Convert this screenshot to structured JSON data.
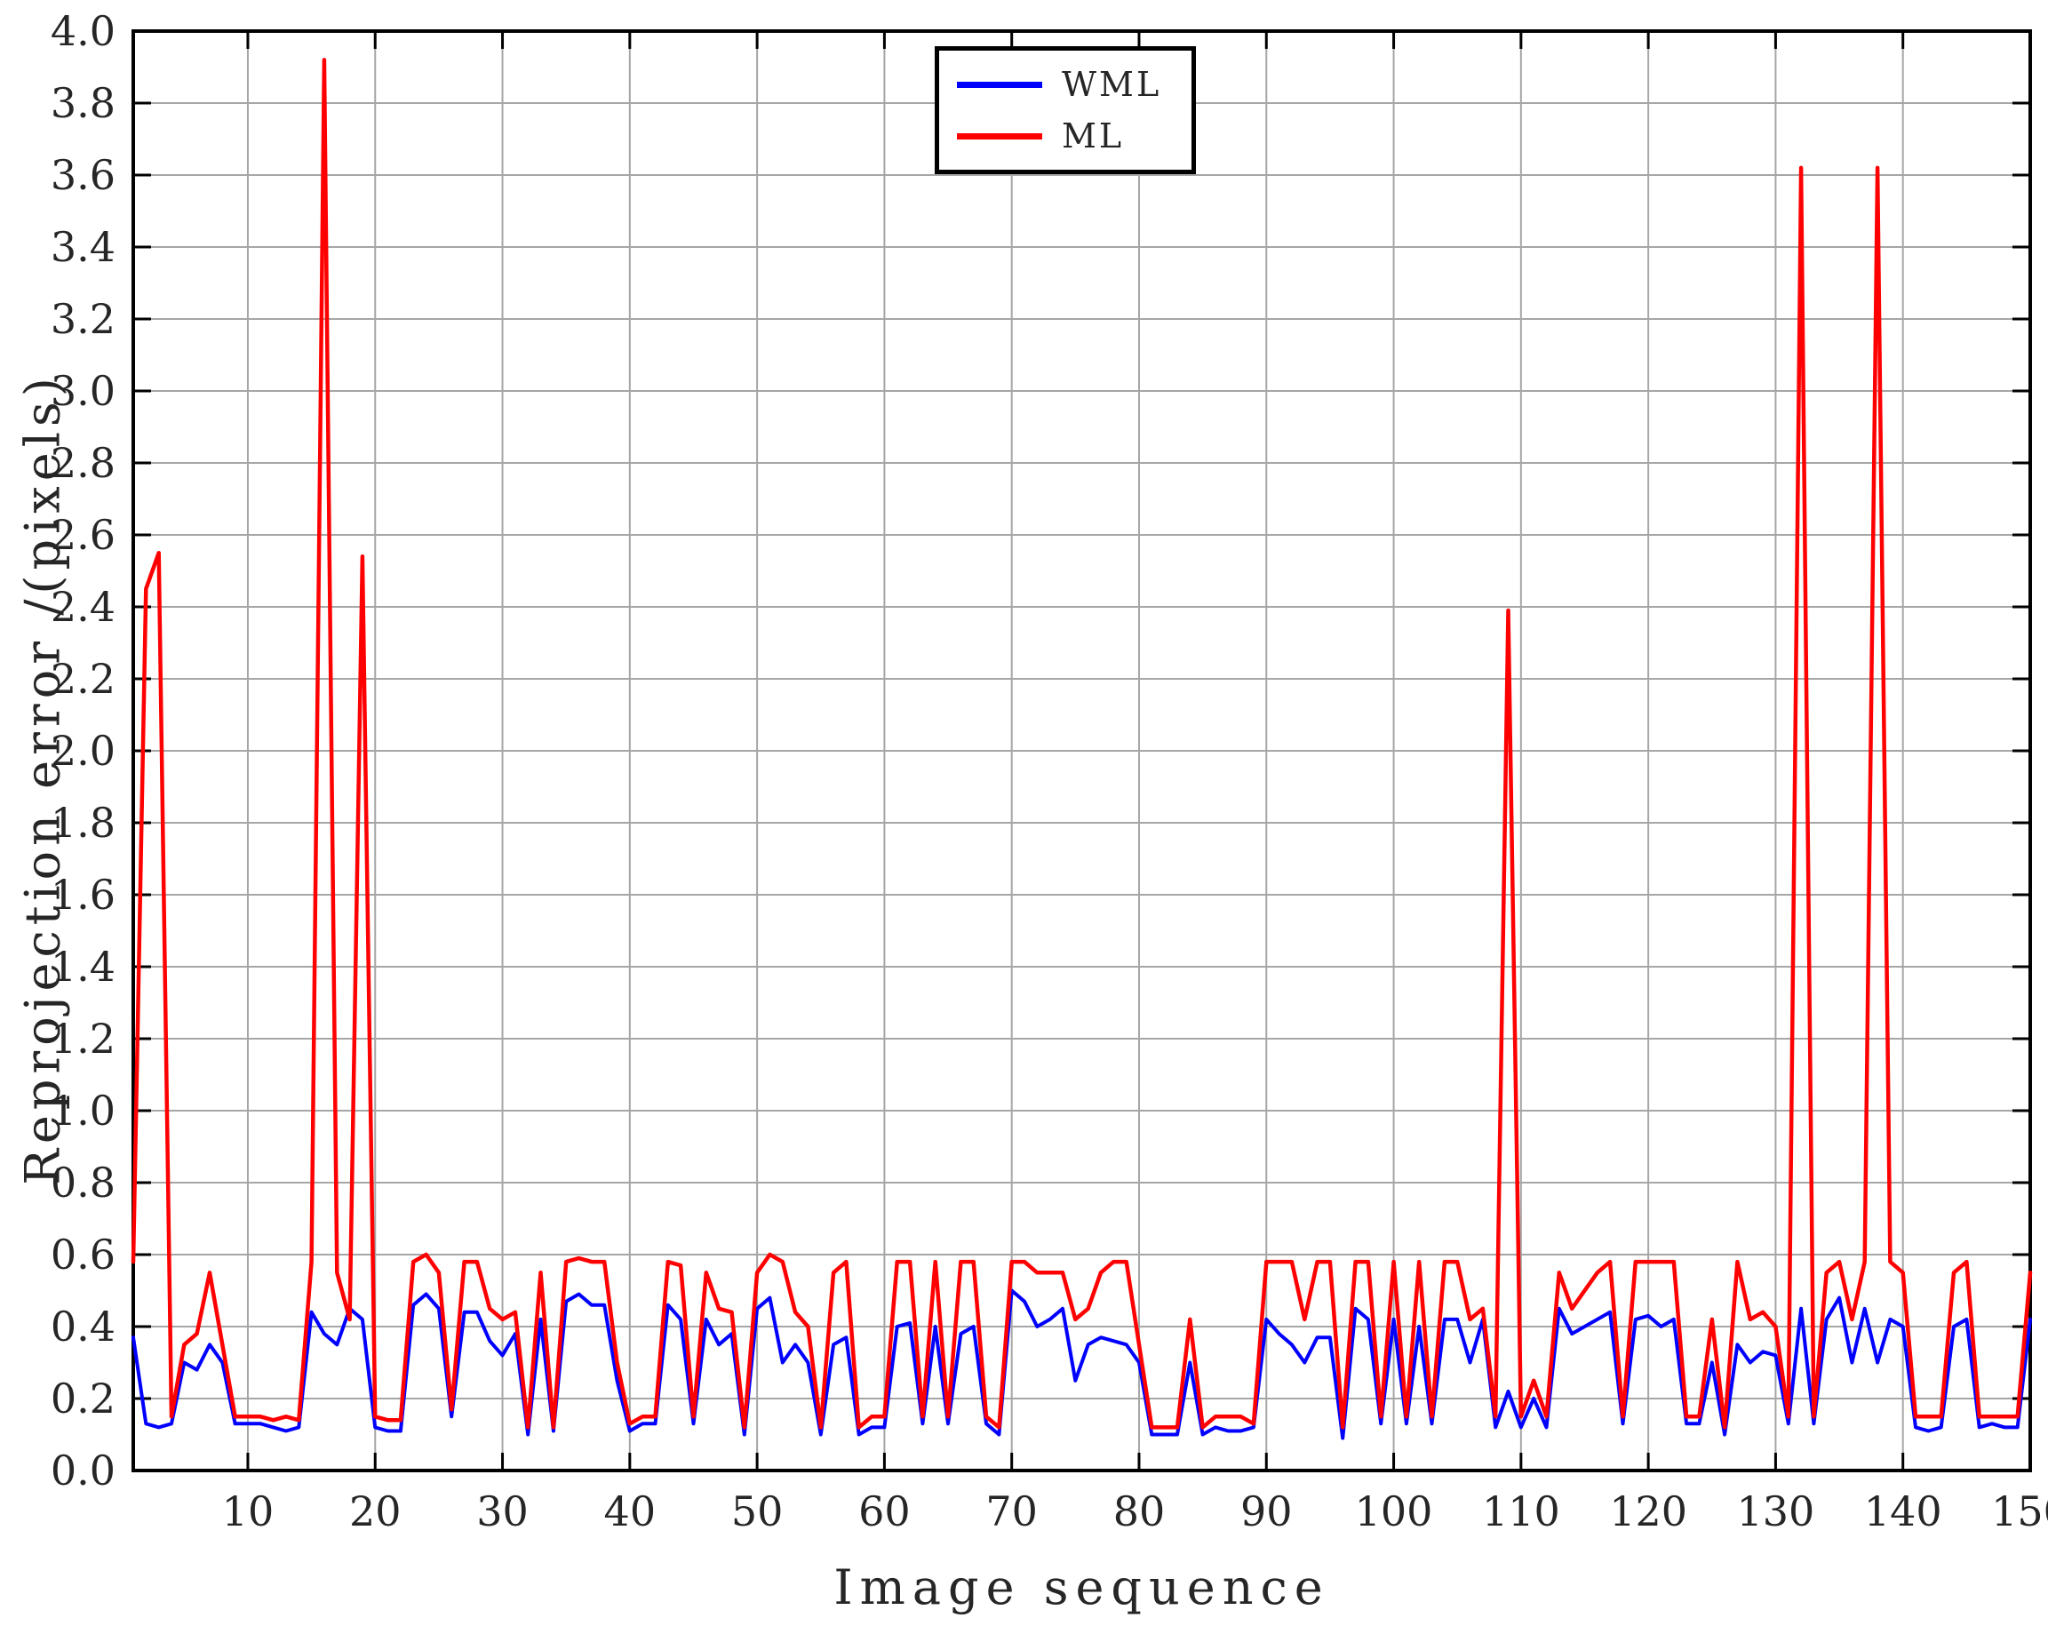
{
  "figure": {
    "xlabel": "Image sequence",
    "ylabel": "Reprojection error /(pixels)"
  },
  "legend": {
    "entries": [
      {
        "label": "WML",
        "color": "#0000ff"
      },
      {
        "label": "ML",
        "color": "#ff0000"
      }
    ]
  },
  "colors": {
    "background": "#ffffff",
    "grid": "#a6a6a6",
    "axis": "#000000",
    "wml_line": "#0000ff",
    "ml_line": "#ff0000"
  },
  "chart_data": {
    "type": "line",
    "title": "",
    "xlabel": "Image sequence",
    "ylabel": "Reprojection error /(pixels)",
    "xlim": [
      1,
      150
    ],
    "ylim": [
      0.0,
      4.0
    ],
    "grid": true,
    "legend_position": "top-center",
    "xticks": [
      10,
      20,
      30,
      40,
      50,
      60,
      70,
      80,
      90,
      100,
      110,
      120,
      130,
      140,
      150
    ],
    "yticks": [
      0.0,
      0.2,
      0.4,
      0.6,
      0.8,
      1.0,
      1.2,
      1.4,
      1.6,
      1.8,
      2.0,
      2.2,
      2.4,
      2.6,
      2.8,
      3.0,
      3.2,
      3.4,
      3.6,
      3.8,
      4.0
    ],
    "ytick_labels": [
      "0.0",
      "0.2",
      "0.4",
      "0.6",
      "0.8",
      "1.0",
      "1.2",
      "1.4",
      "1.6",
      "1.8",
      "2.0",
      "2.2",
      "2.4",
      "2.6",
      "2.8",
      "3.0",
      "3.2",
      "3.4",
      "3.6",
      "3.8",
      "4.0"
    ],
    "x_start": 1,
    "series": [
      {
        "name": "WML",
        "color": "#0000ff",
        "line_width": 4,
        "values": [
          0.37,
          0.13,
          0.12,
          0.13,
          0.3,
          0.28,
          0.35,
          0.3,
          0.13,
          0.13,
          0.13,
          0.12,
          0.11,
          0.12,
          0.44,
          0.38,
          0.35,
          0.45,
          0.42,
          0.12,
          0.11,
          0.11,
          0.46,
          0.49,
          0.45,
          0.15,
          0.44,
          0.44,
          0.36,
          0.32,
          0.38,
          0.1,
          0.42,
          0.11,
          0.47,
          0.49,
          0.46,
          0.46,
          0.25,
          0.11,
          0.13,
          0.13,
          0.46,
          0.42,
          0.13,
          0.42,
          0.35,
          0.38,
          0.1,
          0.45,
          0.48,
          0.3,
          0.35,
          0.3,
          0.1,
          0.35,
          0.37,
          0.1,
          0.12,
          0.12,
          0.4,
          0.41,
          0.13,
          0.4,
          0.13,
          0.38,
          0.4,
          0.13,
          0.1,
          0.5,
          0.47,
          0.4,
          0.42,
          0.45,
          0.25,
          0.35,
          0.37,
          0.36,
          0.35,
          0.3,
          0.1,
          0.1,
          0.1,
          0.3,
          0.1,
          0.12,
          0.11,
          0.11,
          0.12,
          0.42,
          0.38,
          0.35,
          0.3,
          0.37,
          0.37,
          0.09,
          0.45,
          0.42,
          0.13,
          0.42,
          0.13,
          0.4,
          0.13,
          0.42,
          0.42,
          0.3,
          0.42,
          0.12,
          0.22,
          0.12,
          0.2,
          0.12,
          0.45,
          0.38,
          0.4,
          0.42,
          0.44,
          0.13,
          0.42,
          0.43,
          0.4,
          0.42,
          0.13,
          0.13,
          0.3,
          0.1,
          0.35,
          0.3,
          0.33,
          0.32,
          0.13,
          0.45,
          0.13,
          0.42,
          0.48,
          0.3,
          0.45,
          0.3,
          0.42,
          0.4,
          0.12,
          0.11,
          0.12,
          0.4,
          0.42,
          0.12,
          0.13,
          0.12,
          0.12,
          0.42
        ]
      },
      {
        "name": "ML",
        "color": "#ff0000",
        "line_width": 4.5,
        "values": [
          0.58,
          2.45,
          2.55,
          0.15,
          0.35,
          0.38,
          0.55,
          0.35,
          0.15,
          0.15,
          0.15,
          0.14,
          0.15,
          0.14,
          0.58,
          3.92,
          0.55,
          0.42,
          2.54,
          0.15,
          0.14,
          0.14,
          0.58,
          0.6,
          0.55,
          0.17,
          0.58,
          0.58,
          0.45,
          0.42,
          0.44,
          0.12,
          0.55,
          0.12,
          0.58,
          0.59,
          0.58,
          0.58,
          0.3,
          0.13,
          0.15,
          0.15,
          0.58,
          0.57,
          0.15,
          0.55,
          0.45,
          0.44,
          0.12,
          0.55,
          0.6,
          0.58,
          0.44,
          0.4,
          0.12,
          0.55,
          0.58,
          0.12,
          0.15,
          0.15,
          0.58,
          0.58,
          0.15,
          0.58,
          0.15,
          0.58,
          0.58,
          0.15,
          0.12,
          0.58,
          0.58,
          0.55,
          0.55,
          0.55,
          0.42,
          0.45,
          0.55,
          0.58,
          0.58,
          0.35,
          0.12,
          0.12,
          0.12,
          0.42,
          0.12,
          0.15,
          0.15,
          0.15,
          0.13,
          0.58,
          0.58,
          0.58,
          0.42,
          0.58,
          0.58,
          0.12,
          0.58,
          0.58,
          0.15,
          0.58,
          0.15,
          0.58,
          0.15,
          0.58,
          0.58,
          0.42,
          0.45,
          0.15,
          2.39,
          0.15,
          0.25,
          0.15,
          0.55,
          0.45,
          0.5,
          0.55,
          0.58,
          0.15,
          0.58,
          0.58,
          0.58,
          0.58,
          0.15,
          0.15,
          0.42,
          0.12,
          0.58,
          0.42,
          0.44,
          0.4,
          0.15,
          3.62,
          0.15,
          0.55,
          0.58,
          0.42,
          0.58,
          3.62,
          0.58,
          0.55,
          0.15,
          0.15,
          0.15,
          0.55,
          0.58,
          0.15,
          0.15,
          0.15,
          0.15,
          0.55
        ]
      }
    ]
  }
}
